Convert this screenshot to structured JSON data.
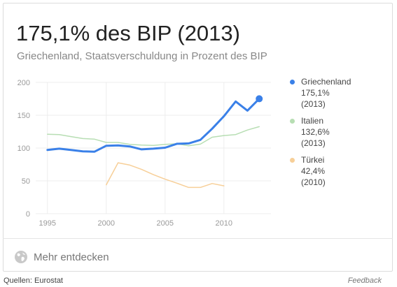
{
  "headline": "175,1% des BIP (2013)",
  "subtitle": "Griechenland, Staatsverschuldung in Prozent des BIP",
  "explore_label": "Mehr entdecken",
  "source": "Quellen: Eurostat",
  "feedback": "Feedback",
  "chart_data": {
    "type": "line",
    "xlim": [
      1994,
      2014
    ],
    "ylim": [
      0,
      200
    ],
    "x_ticks": [
      1995,
      2000,
      2005,
      2010
    ],
    "y_ticks": [
      0,
      50,
      100,
      150,
      200
    ],
    "x_tick_labels": [
      "1995",
      "2000",
      "2005",
      "2010"
    ],
    "y_tick_labels": [
      "0",
      "50",
      "100",
      "150",
      "200"
    ],
    "grid": true,
    "legend_position": "right",
    "series": [
      {
        "name": "Griechenland",
        "value_label": "175,1%",
        "year_label": "(2013)",
        "color": "#3a80e8",
        "highlight": true,
        "x": [
          1995,
          1996,
          1997,
          1998,
          1999,
          2000,
          2001,
          2002,
          2003,
          2004,
          2005,
          2006,
          2007,
          2008,
          2009,
          2010,
          2011,
          2012,
          2013
        ],
        "y": [
          97.0,
          99.0,
          97.0,
          95.0,
          94.5,
          103.5,
          104.0,
          102.5,
          98.0,
          99.0,
          100.5,
          106.5,
          107.0,
          112.5,
          129.5,
          148.5,
          171.0,
          157.0,
          175.1
        ]
      },
      {
        "name": "Italien",
        "value_label": "132,6%",
        "year_label": "(2013)",
        "color": "#b7deb3",
        "highlight": false,
        "x": [
          1995,
          1996,
          1997,
          1998,
          1999,
          2000,
          2001,
          2002,
          2003,
          2004,
          2005,
          2006,
          2007,
          2008,
          2009,
          2010,
          2011,
          2012,
          2013
        ],
        "y": [
          121.0,
          120.5,
          117.5,
          114.5,
          113.5,
          108.5,
          108.5,
          105.5,
          104.5,
          104.0,
          105.5,
          106.5,
          103.5,
          106.0,
          116.5,
          119.0,
          120.5,
          127.5,
          132.6
        ]
      },
      {
        "name": "Türkei",
        "value_label": "42,4%",
        "year_label": "(2010)",
        "color": "#f7cf98",
        "highlight": false,
        "x": [
          2000,
          2001,
          2002,
          2003,
          2004,
          2005,
          2006,
          2007,
          2008,
          2009,
          2010
        ],
        "y": [
          44.0,
          77.5,
          74.0,
          67.5,
          59.5,
          52.5,
          46.5,
          40.0,
          40.0,
          46.0,
          42.4
        ]
      }
    ]
  }
}
